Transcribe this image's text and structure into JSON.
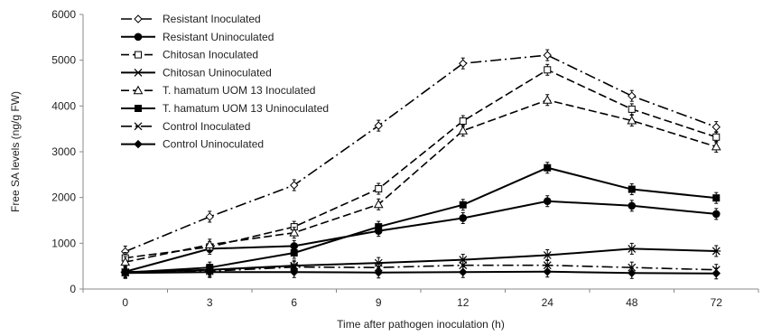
{
  "chart_data": {
    "type": "line",
    "xlabel": "Time after pathogen inoculation (h)",
    "ylabel": "Free SA levels (ng/g FW)",
    "ylim": [
      0,
      6000
    ],
    "yticks": [
      0,
      1000,
      2000,
      3000,
      4000,
      5000,
      6000
    ],
    "categories": [
      "0",
      "3",
      "6",
      "9",
      "12",
      "24",
      "48",
      "72"
    ],
    "grid": false,
    "legend_position": "top-left",
    "series": [
      {
        "name": "Resistant Inoculated",
        "dash": "dash-dot",
        "marker": "diamond-open",
        "values": [
          820,
          1580,
          2270,
          3570,
          4930,
          5110,
          4220,
          3540
        ]
      },
      {
        "name": "Resistant Uninoculated",
        "dash": "solid",
        "marker": "circle-filled",
        "values": [
          380,
          880,
          940,
          1270,
          1550,
          1920,
          1820,
          1640
        ]
      },
      {
        "name": "Chitosan Inoculated",
        "dash": "dashed",
        "marker": "square-open",
        "values": [
          680,
          920,
          1360,
          2190,
          3670,
          4790,
          3930,
          3320
        ]
      },
      {
        "name": "Chitosan Uninoculated",
        "dash": "solid",
        "marker": "asterisk",
        "values": [
          370,
          420,
          510,
          570,
          640,
          740,
          880,
          830
        ]
      },
      {
        "name": "T. hamatum UOM 13 Inoculated",
        "dash": "dashed",
        "marker": "triangle-open",
        "values": [
          590,
          970,
          1230,
          1850,
          3460,
          4130,
          3680,
          3110
        ]
      },
      {
        "name": "T. hamatum UOM 13 Uninoculated",
        "dash": "solid",
        "marker": "square-filled",
        "values": [
          360,
          470,
          790,
          1360,
          1840,
          2650,
          2180,
          1990
        ]
      },
      {
        "name": "Control Inoculated",
        "dash": "dash-dot",
        "marker": "x",
        "values": [
          360,
          390,
          480,
          470,
          520,
          520,
          470,
          420
        ]
      },
      {
        "name": "Control Uninoculated",
        "dash": "solid",
        "marker": "diamond-filled",
        "values": [
          350,
          370,
          370,
          360,
          370,
          380,
          350,
          340
        ]
      }
    ]
  }
}
